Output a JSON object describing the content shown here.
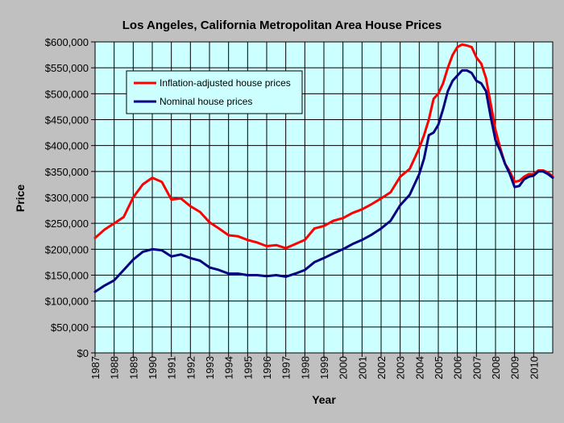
{
  "chart_data": {
    "type": "line",
    "title": "Los Angeles, California Metropolitan Area House Prices",
    "xlabel": "Year",
    "ylabel": "Price",
    "xlim": [
      1987,
      2011
    ],
    "ylim": [
      0,
      600000
    ],
    "y_ticks": [
      0,
      50000,
      100000,
      150000,
      200000,
      250000,
      300000,
      350000,
      400000,
      450000,
      500000,
      550000,
      600000
    ],
    "y_tick_labels": [
      "$0",
      "$50,000",
      "$100,000",
      "$150,000",
      "$200,000",
      "$250,000",
      "$300,000",
      "$350,000",
      "$400,000",
      "$450,000",
      "$500,000",
      "$550,000",
      "$600,000"
    ],
    "x_ticks": [
      1987,
      1988,
      1989,
      1990,
      1991,
      1992,
      1993,
      1994,
      1995,
      1996,
      1997,
      1998,
      1999,
      2000,
      2001,
      2002,
      2003,
      2004,
      2005,
      2006,
      2007,
      2008,
      2009,
      2010
    ],
    "x_tick_labels": [
      "1987",
      "1988",
      "1989",
      "1990",
      "1991",
      "1992",
      "1993",
      "1994",
      "1995",
      "1996",
      "1997",
      "1998",
      "1999",
      "2000",
      "2001",
      "2002",
      "2003",
      "2004",
      "2005",
      "2006",
      "2007",
      "2008",
      "2009",
      "2010"
    ],
    "grid": true,
    "legend_position": "top-left",
    "plot_background": "#ccffff",
    "figure_background": "#c0c0c0",
    "series": [
      {
        "name": "Inflation-adjusted house prices",
        "color": "#ff0000",
        "x": [
          1987,
          1987.5,
          1988,
          1988.5,
          1989,
          1989.5,
          1990,
          1990.5,
          1991,
          1991.5,
          1992,
          1992.5,
          1993,
          1993.5,
          1994,
          1994.5,
          1995,
          1995.5,
          1996,
          1996.5,
          1997,
          1997.5,
          1998,
          1998.5,
          1999,
          1999.5,
          2000,
          2000.5,
          2001,
          2001.5,
          2002,
          2002.5,
          2003,
          2003.5,
          2004,
          2004.25,
          2004.5,
          2004.75,
          2005,
          2005.25,
          2005.5,
          2005.75,
          2006,
          2006.25,
          2006.5,
          2006.75,
          2007,
          2007.25,
          2007.5,
          2007.75,
          2008,
          2008.25,
          2008.5,
          2008.75,
          2009,
          2009.25,
          2009.5,
          2009.75,
          2010,
          2010.25,
          2010.5,
          2010.75,
          2011
        ],
        "values": [
          222000,
          238000,
          250000,
          262000,
          300000,
          325000,
          338000,
          330000,
          296000,
          298000,
          283000,
          272000,
          252000,
          240000,
          227000,
          225000,
          218000,
          213000,
          206000,
          208000,
          202000,
          210000,
          218000,
          240000,
          245000,
          255000,
          260000,
          270000,
          277000,
          287000,
          298000,
          310000,
          340000,
          355000,
          395000,
          420000,
          450000,
          490000,
          500000,
          520000,
          550000,
          575000,
          590000,
          595000,
          593000,
          590000,
          570000,
          558000,
          530000,
          480000,
          430000,
          395000,
          365000,
          350000,
          330000,
          332000,
          340000,
          345000,
          345000,
          352000,
          352000,
          348000,
          340000
        ]
      },
      {
        "name": "Nominal house prices",
        "color": "#000080",
        "x": [
          1987,
          1987.5,
          1988,
          1988.5,
          1989,
          1989.5,
          1990,
          1990.5,
          1991,
          1991.5,
          1992,
          1992.5,
          1993,
          1993.5,
          1994,
          1994.5,
          1995,
          1995.5,
          1996,
          1996.5,
          1997,
          1997.5,
          1998,
          1998.5,
          1999,
          1999.5,
          2000,
          2000.5,
          2001,
          2001.5,
          2002,
          2002.5,
          2003,
          2003.5,
          2004,
          2004.25,
          2004.5,
          2004.75,
          2005,
          2005.25,
          2005.5,
          2005.75,
          2006,
          2006.25,
          2006.5,
          2006.75,
          2007,
          2007.25,
          2007.5,
          2007.75,
          2008,
          2008.25,
          2008.5,
          2008.75,
          2009,
          2009.25,
          2009.5,
          2009.75,
          2010,
          2010.25,
          2010.5,
          2010.75,
          2011
        ],
        "values": [
          118000,
          130000,
          140000,
          160000,
          180000,
          195000,
          200000,
          198000,
          186000,
          190000,
          183000,
          178000,
          165000,
          160000,
          153000,
          153000,
          150000,
          150000,
          148000,
          150000,
          147000,
          153000,
          160000,
          175000,
          183000,
          192000,
          200000,
          210000,
          218000,
          228000,
          240000,
          255000,
          285000,
          305000,
          345000,
          375000,
          420000,
          425000,
          440000,
          470000,
          505000,
          525000,
          535000,
          545000,
          545000,
          540000,
          525000,
          520000,
          505000,
          455000,
          410000,
          390000,
          365000,
          345000,
          320000,
          322000,
          335000,
          340000,
          342000,
          350000,
          350000,
          345000,
          338000
        ]
      }
    ]
  }
}
